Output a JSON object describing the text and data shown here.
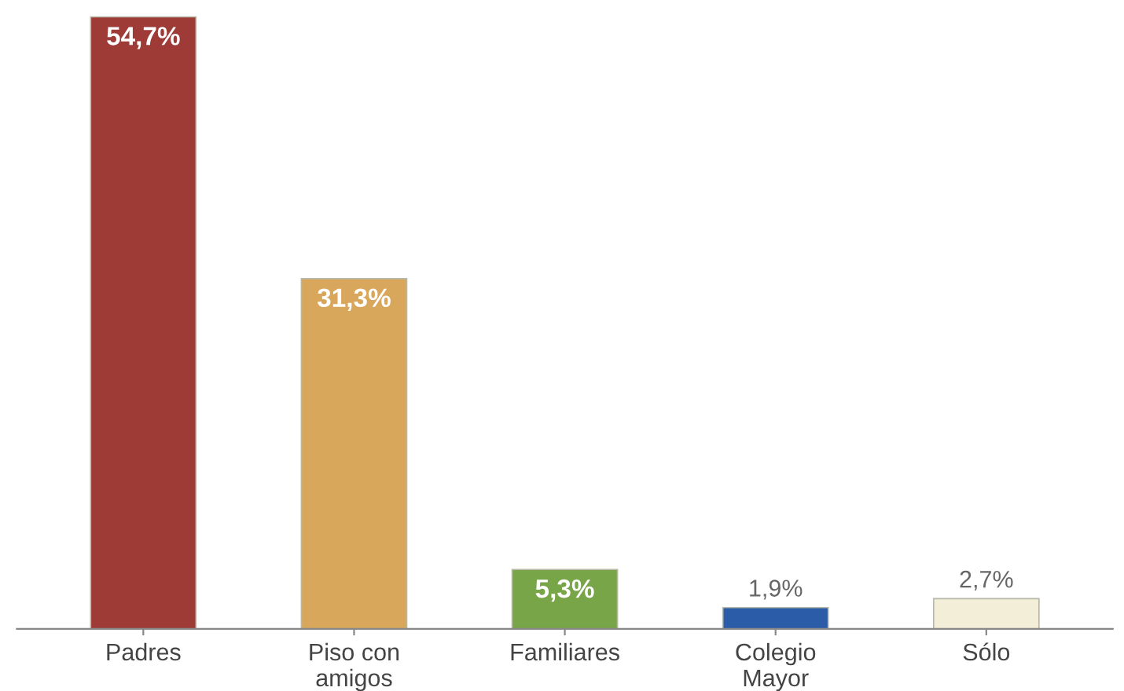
{
  "chart_data": {
    "type": "bar",
    "categories": [
      "Padres",
      "Piso con\namigos",
      "Familiares",
      "Colegio\nMayor",
      "Sólo"
    ],
    "values": [
      54.7,
      31.3,
      5.3,
      1.9,
      2.7
    ],
    "colors": [
      "#9e3b37",
      "#d8a75c",
      "#78a548",
      "#2b5ca8",
      "#f2eed8"
    ],
    "value_labels": [
      "54,7%",
      "31,3%",
      "5,3%",
      "1,9%",
      "2,7%"
    ],
    "grid": false,
    "legend": false
  }
}
